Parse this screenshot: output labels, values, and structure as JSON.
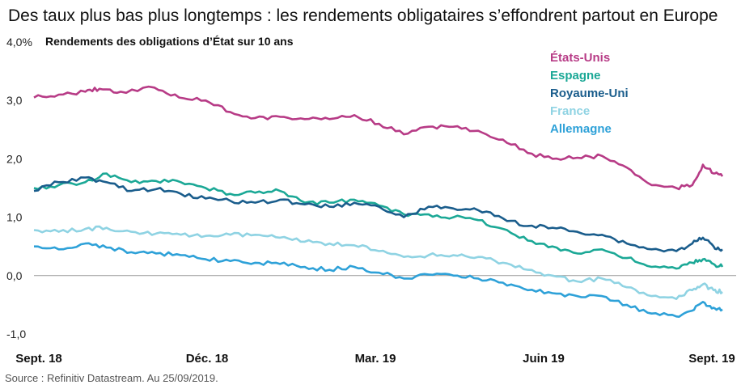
{
  "chart_data": {
    "type": "line",
    "title": "Des taux plus bas plus longtemps : les rendements obligataires s’effondrent partout en Europe",
    "subtitle": "Rendements des obligations d’État sur 10 ans",
    "source": "Source : Refinitiv Datastream. Au 25/09/2019.",
    "x_tick_labels": [
      "Sept. 18",
      "Déc. 18",
      "Mar. 19",
      "Juin 19",
      "Sept. 19"
    ],
    "y_tick_labels": [
      "4,0%",
      "3,0",
      "2,0",
      "1,0",
      "0,0",
      "-1,0"
    ],
    "y_ticks": [
      4,
      3,
      2,
      1,
      0,
      -1
    ],
    "ylim": [
      -1,
      4
    ],
    "x_range": [
      "2018-09-01",
      "2019-09-25"
    ],
    "grid": false,
    "legend_placement": "top-right",
    "series": [
      {
        "name": "États-Unis",
        "color": "#b73b86",
        "points": [
          [
            "2018-09-01",
            3.05
          ],
          [
            "2018-09-15",
            3.1
          ],
          [
            "2018-09-30",
            3.15
          ],
          [
            "2018-10-08",
            3.2
          ],
          [
            "2018-10-20",
            3.15
          ],
          [
            "2018-11-08",
            3.22
          ],
          [
            "2018-11-22",
            3.05
          ],
          [
            "2018-12-07",
            3.0
          ],
          [
            "2018-12-21",
            2.8
          ],
          [
            "2019-01-04",
            2.7
          ],
          [
            "2019-01-18",
            2.72
          ],
          [
            "2019-02-01",
            2.68
          ],
          [
            "2019-02-15",
            2.68
          ],
          [
            "2019-03-01",
            2.75
          ],
          [
            "2019-03-15",
            2.6
          ],
          [
            "2019-03-29",
            2.42
          ],
          [
            "2019-04-12",
            2.55
          ],
          [
            "2019-04-26",
            2.55
          ],
          [
            "2019-05-10",
            2.48
          ],
          [
            "2019-05-24",
            2.33
          ],
          [
            "2019-06-07",
            2.1
          ],
          [
            "2019-06-21",
            2.0
          ],
          [
            "2019-07-05",
            2.02
          ],
          [
            "2019-07-19",
            2.05
          ],
          [
            "2019-08-02",
            1.85
          ],
          [
            "2019-08-16",
            1.55
          ],
          [
            "2019-08-30",
            1.5
          ],
          [
            "2019-09-08",
            1.55
          ],
          [
            "2019-09-14",
            1.9
          ],
          [
            "2019-09-20",
            1.75
          ],
          [
            "2019-09-25",
            1.7
          ]
        ]
      },
      {
        "name": "Espagne",
        "color": "#1ba896",
        "points": [
          [
            "2018-09-01",
            1.5
          ],
          [
            "2018-09-15",
            1.55
          ],
          [
            "2018-09-30",
            1.6
          ],
          [
            "2018-10-12",
            1.75
          ],
          [
            "2018-10-26",
            1.6
          ],
          [
            "2018-11-09",
            1.62
          ],
          [
            "2018-11-23",
            1.6
          ],
          [
            "2018-12-07",
            1.5
          ],
          [
            "2018-12-21",
            1.4
          ],
          [
            "2019-01-04",
            1.42
          ],
          [
            "2019-01-18",
            1.45
          ],
          [
            "2019-02-01",
            1.25
          ],
          [
            "2019-02-15",
            1.25
          ],
          [
            "2019-03-01",
            1.3
          ],
          [
            "2019-03-15",
            1.2
          ],
          [
            "2019-03-29",
            1.05
          ],
          [
            "2019-04-12",
            1.05
          ],
          [
            "2019-04-26",
            1.0
          ],
          [
            "2019-05-10",
            0.95
          ],
          [
            "2019-05-24",
            0.8
          ],
          [
            "2019-06-07",
            0.6
          ],
          [
            "2019-06-21",
            0.5
          ],
          [
            "2019-07-05",
            0.38
          ],
          [
            "2019-07-19",
            0.45
          ],
          [
            "2019-08-02",
            0.3
          ],
          [
            "2019-08-16",
            0.15
          ],
          [
            "2019-08-30",
            0.12
          ],
          [
            "2019-09-08",
            0.22
          ],
          [
            "2019-09-14",
            0.28
          ],
          [
            "2019-09-20",
            0.2
          ],
          [
            "2019-09-25",
            0.15
          ]
        ]
      },
      {
        "name": "Royaume-Uni",
        "color": "#1a5d8c",
        "points": [
          [
            "2018-09-01",
            1.45
          ],
          [
            "2018-09-15",
            1.6
          ],
          [
            "2018-09-30",
            1.68
          ],
          [
            "2018-10-12",
            1.6
          ],
          [
            "2018-10-26",
            1.45
          ],
          [
            "2018-11-09",
            1.48
          ],
          [
            "2018-11-23",
            1.4
          ],
          [
            "2018-12-07",
            1.32
          ],
          [
            "2018-12-21",
            1.28
          ],
          [
            "2019-01-04",
            1.25
          ],
          [
            "2019-01-18",
            1.3
          ],
          [
            "2019-02-01",
            1.22
          ],
          [
            "2019-02-15",
            1.18
          ],
          [
            "2019-03-01",
            1.25
          ],
          [
            "2019-03-15",
            1.18
          ],
          [
            "2019-03-29",
            1.0
          ],
          [
            "2019-04-12",
            1.18
          ],
          [
            "2019-04-26",
            1.15
          ],
          [
            "2019-05-10",
            1.12
          ],
          [
            "2019-05-24",
            0.98
          ],
          [
            "2019-06-07",
            0.85
          ],
          [
            "2019-06-21",
            0.82
          ],
          [
            "2019-07-05",
            0.75
          ],
          [
            "2019-07-19",
            0.7
          ],
          [
            "2019-08-02",
            0.55
          ],
          [
            "2019-08-16",
            0.45
          ],
          [
            "2019-08-30",
            0.42
          ],
          [
            "2019-09-08",
            0.55
          ],
          [
            "2019-09-14",
            0.65
          ],
          [
            "2019-09-20",
            0.5
          ],
          [
            "2019-09-25",
            0.45
          ]
        ]
      },
      {
        "name": "France",
        "color": "#8fd3e3",
        "points": [
          [
            "2018-09-01",
            0.78
          ],
          [
            "2018-09-15",
            0.75
          ],
          [
            "2018-09-30",
            0.8
          ],
          [
            "2018-10-12",
            0.82
          ],
          [
            "2018-10-26",
            0.75
          ],
          [
            "2018-11-09",
            0.72
          ],
          [
            "2018-11-23",
            0.7
          ],
          [
            "2018-12-07",
            0.68
          ],
          [
            "2018-12-21",
            0.7
          ],
          [
            "2019-01-04",
            0.7
          ],
          [
            "2019-01-18",
            0.65
          ],
          [
            "2019-02-01",
            0.58
          ],
          [
            "2019-02-15",
            0.55
          ],
          [
            "2019-03-01",
            0.52
          ],
          [
            "2019-03-15",
            0.42
          ],
          [
            "2019-03-29",
            0.32
          ],
          [
            "2019-04-12",
            0.35
          ],
          [
            "2019-04-26",
            0.35
          ],
          [
            "2019-05-10",
            0.32
          ],
          [
            "2019-05-24",
            0.22
          ],
          [
            "2019-06-07",
            0.1
          ],
          [
            "2019-06-21",
            0.0
          ],
          [
            "2019-07-05",
            -0.1
          ],
          [
            "2019-07-19",
            -0.05
          ],
          [
            "2019-08-02",
            -0.2
          ],
          [
            "2019-08-16",
            -0.35
          ],
          [
            "2019-08-30",
            -0.4
          ],
          [
            "2019-09-08",
            -0.25
          ],
          [
            "2019-09-14",
            -0.15
          ],
          [
            "2019-09-20",
            -0.25
          ],
          [
            "2019-09-25",
            -0.28
          ]
        ]
      },
      {
        "name": "Allemagne",
        "color": "#2ea1d8",
        "points": [
          [
            "2018-09-01",
            0.5
          ],
          [
            "2018-09-15",
            0.45
          ],
          [
            "2018-09-30",
            0.55
          ],
          [
            "2018-10-12",
            0.48
          ],
          [
            "2018-10-26",
            0.4
          ],
          [
            "2018-11-09",
            0.38
          ],
          [
            "2018-11-23",
            0.35
          ],
          [
            "2018-12-07",
            0.28
          ],
          [
            "2018-12-21",
            0.25
          ],
          [
            "2019-01-04",
            0.22
          ],
          [
            "2019-01-18",
            0.2
          ],
          [
            "2019-02-01",
            0.15
          ],
          [
            "2019-02-15",
            0.1
          ],
          [
            "2019-03-01",
            0.15
          ],
          [
            "2019-03-15",
            0.05
          ],
          [
            "2019-03-29",
            -0.05
          ],
          [
            "2019-04-12",
            0.02
          ],
          [
            "2019-04-26",
            0.0
          ],
          [
            "2019-05-10",
            -0.05
          ],
          [
            "2019-05-24",
            -0.12
          ],
          [
            "2019-06-07",
            -0.25
          ],
          [
            "2019-06-21",
            -0.3
          ],
          [
            "2019-07-05",
            -0.35
          ],
          [
            "2019-07-19",
            -0.35
          ],
          [
            "2019-08-02",
            -0.5
          ],
          [
            "2019-08-16",
            -0.65
          ],
          [
            "2019-08-30",
            -0.7
          ],
          [
            "2019-09-08",
            -0.6
          ],
          [
            "2019-09-14",
            -0.45
          ],
          [
            "2019-09-20",
            -0.55
          ],
          [
            "2019-09-25",
            -0.58
          ]
        ]
      }
    ]
  }
}
